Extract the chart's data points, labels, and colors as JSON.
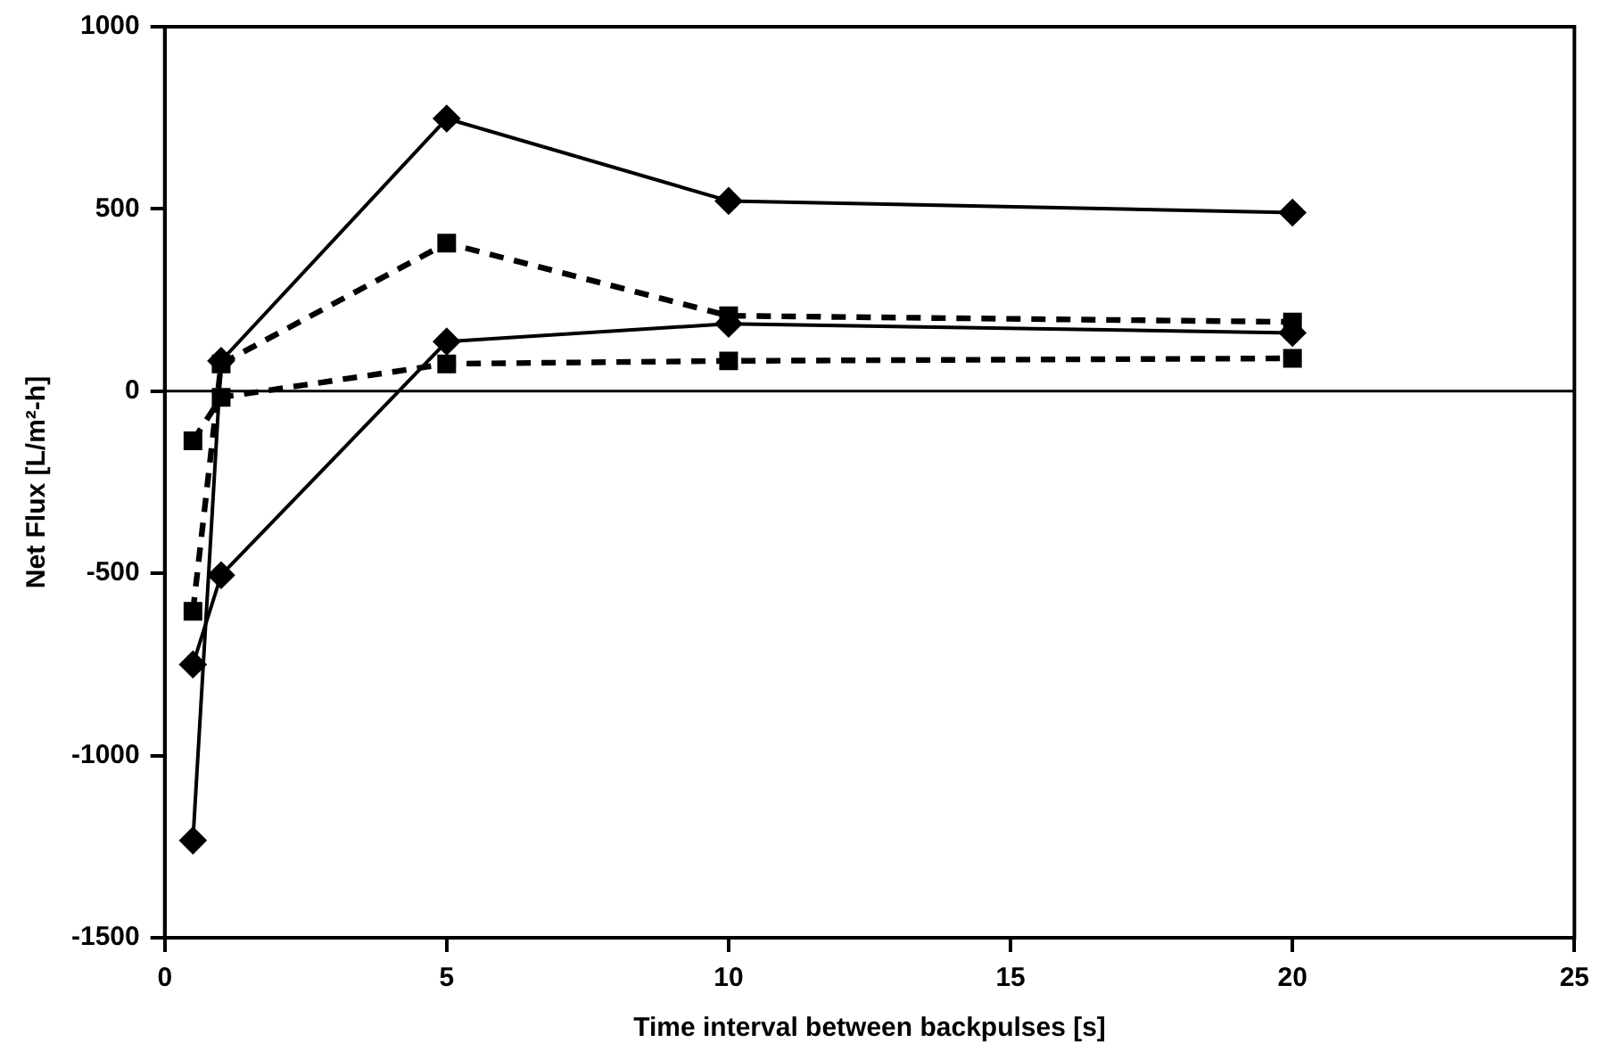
{
  "chart_data": {
    "type": "line",
    "xlabel": "Time interval between backpulses [s]",
    "ylabel": "Net Flux [L/m²-h]",
    "x": [
      0.5,
      1,
      5,
      10,
      20
    ],
    "xlim": [
      0,
      25
    ],
    "xticks": [
      0,
      5,
      10,
      15,
      20,
      25
    ],
    "ylim": [
      -1500,
      1000
    ],
    "yticks": [
      -1500,
      -1000,
      -500,
      0,
      500,
      1000
    ],
    "grid": false,
    "legend": false,
    "ref_lines": [
      {
        "axis": "y",
        "value": 0,
        "color": "#000000"
      }
    ],
    "series": [
      {
        "color": "#000000",
        "marker": "diamond",
        "line_style": "solid",
        "values": [
          -1233,
          83,
          748,
          522,
          490
        ]
      },
      {
        "color": "#000000",
        "marker": "square",
        "line_style": "dashed",
        "values": [
          -604,
          75,
          406,
          207,
          190
        ]
      },
      {
        "color": "#000000",
        "marker": "diamond",
        "line_style": "solid",
        "values": [
          -750,
          -505,
          136,
          185,
          160
        ]
      },
      {
        "color": "#000000",
        "marker": "square",
        "line_style": "dashed",
        "values": [
          -136,
          -17,
          75,
          83,
          90
        ]
      }
    ]
  }
}
